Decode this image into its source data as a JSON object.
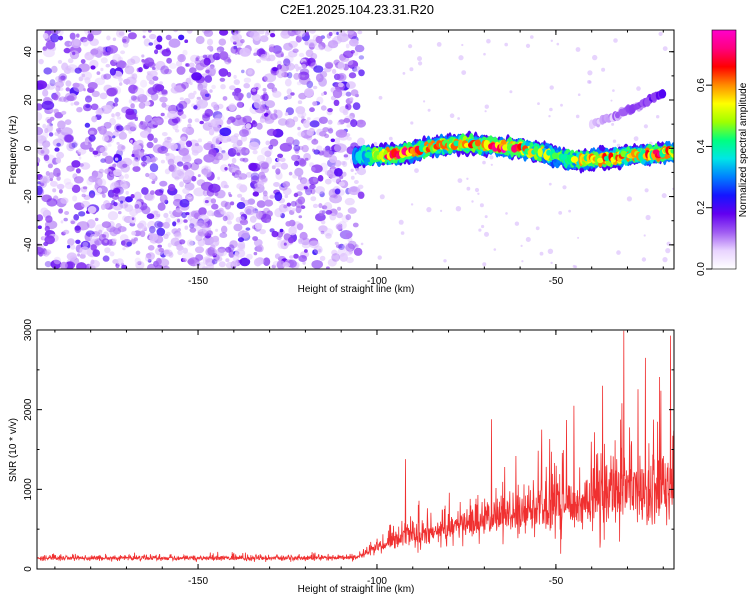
{
  "figure_title": "C2E1.2025.104.23.31.R20",
  "chart_data": [
    {
      "type": "heatmap",
      "title": "C2E1.2025.104.23.31.R20",
      "xlabel": "Height of straight line (km)",
      "ylabel": "Frequency (Hz)",
      "xlim": [
        -195,
        -17
      ],
      "ylim": [
        -50,
        49
      ],
      "x_ticks": [
        -150,
        -100,
        -50
      ],
      "x_tick_labels": [
        "-150",
        "-100",
        "-50"
      ],
      "y_ticks": [
        -40,
        -20,
        0,
        20,
        40
      ],
      "y_tick_labels": [
        "-40",
        "-20",
        "0",
        "20",
        "40"
      ],
      "colorbar": {
        "label": "Normalized spectral amplitude",
        "range": [
          0.0,
          0.78
        ],
        "ticks": [
          0.0,
          0.2,
          0.4,
          0.6
        ],
        "tick_labels": [
          "0.0",
          "0.2",
          "0.4",
          "0.6"
        ],
        "colormap": [
          "#ffffff",
          "#e9d4ff",
          "#a05cf2",
          "#6200f0",
          "#1515ff",
          "#0080ff",
          "#00e6e6",
          "#00ff80",
          "#a0ff00",
          "#ffff00",
          "#ff8c00",
          "#ff0000",
          "#ff007f",
          "#ff00cc"
        ]
      },
      "noise_region": {
        "x_range": [
          -195,
          -106
        ],
        "frequency_range": [
          -50,
          49
        ],
        "amplitude": 0.05
      },
      "signal_track": {
        "x": [
          -106,
          -100,
          -95,
          -90,
          -85,
          -80,
          -75,
          -70,
          -65,
          -60,
          -55,
          -50,
          -45,
          -40,
          -35,
          -30,
          -25,
          -20,
          -17
        ],
        "frequency": [
          -3,
          -3,
          -2.5,
          -1.5,
          0.5,
          1.5,
          2,
          1.5,
          0.5,
          0,
          -1.5,
          -3.5,
          -5,
          -4.5,
          -4,
          -3,
          -2.5,
          -2,
          -1.5
        ],
        "peak_amplitude": [
          0.3,
          0.55,
          0.7,
          0.6,
          0.62,
          0.55,
          0.6,
          0.55,
          0.7,
          0.62,
          0.55,
          0.4,
          0.5,
          0.55,
          0.6,
          0.55,
          0.6,
          0.68,
          0.5
        ]
      },
      "harmonic_track": {
        "x": [
          -40,
          -35,
          -30,
          -25,
          -20
        ],
        "frequency": [
          10,
          12.5,
          15.5,
          19,
          23
        ],
        "peak_amplitude": [
          0.1,
          0.1,
          0.12,
          0.15,
          0.2
        ]
      }
    },
    {
      "type": "line",
      "xlabel": "Height of straight line (km)",
      "ylabel": "SNR (10 * v/v)",
      "xlim": [
        -195,
        -17
      ],
      "ylim": [
        0,
        3000
      ],
      "x_ticks": [
        -150,
        -100,
        -50
      ],
      "x_tick_labels": [
        "-150",
        "-100",
        "-50"
      ],
      "y_ticks": [
        0,
        1000,
        2000,
        3000
      ],
      "y_tick_labels": [
        "0",
        "1000",
        "2000",
        "3000"
      ],
      "series": [
        {
          "name": "SNR",
          "color": "#f03030",
          "x": [
            -195,
            -160,
            -150,
            -120,
            -106,
            -100,
            -95,
            -92,
            -90,
            -85,
            -80,
            -75,
            -68,
            -60,
            -50,
            -45,
            -40,
            -35,
            -30,
            -25,
            -20,
            -17
          ],
          "baseline": [
            130,
            130,
            130,
            130,
            140,
            250,
            330,
            380,
            400,
            430,
            480,
            530,
            600,
            650,
            700,
            760,
            820,
            870,
            900,
            930,
            950,
            950
          ],
          "spread": [
            70,
            75,
            80,
            80,
            90,
            200,
            300,
            420,
            600,
            350,
            450,
            500,
            650,
            700,
            900,
            900,
            1000,
            1200,
            1200,
            1300,
            1300,
            1300
          ],
          "peaks": [
            {
              "x": -92,
              "value": 1380
            },
            {
              "x": -68,
              "value": 1880
            },
            {
              "x": -54,
              "value": 1750
            },
            {
              "x": -47,
              "value": 1870
            },
            {
              "x": -45,
              "value": 2050
            },
            {
              "x": -37,
              "value": 2300
            },
            {
              "x": -31,
              "value": 2990
            },
            {
              "x": -25,
              "value": 2650
            },
            {
              "x": -21,
              "value": 2410
            },
            {
              "x": -18,
              "value": 2930
            }
          ]
        }
      ]
    }
  ]
}
